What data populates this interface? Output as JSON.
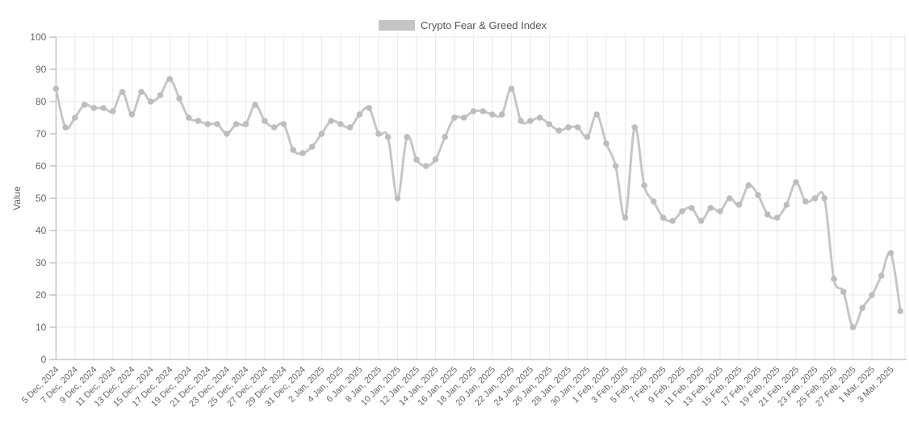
{
  "legend": {
    "label": "Crypto Fear & Greed Index"
  },
  "y_axis": {
    "title": "Value",
    "min": 0,
    "max": 100,
    "ticks": [
      0,
      10,
      20,
      30,
      40,
      50,
      60,
      70,
      80,
      90,
      100
    ]
  },
  "x_axis": {
    "tick_step": 2,
    "first_label": "5 Dec, 2024",
    "last_label": "3 Mar, 2025"
  },
  "colors": {
    "line": "#c6c6c6",
    "point": "#bdbdbd",
    "grid": "#e9e9e9",
    "axis": "#a8a8a8",
    "tick_label": "#666666",
    "legend_swatch": "#c4c4c4",
    "legend_text": "#555555"
  },
  "chart_data": {
    "type": "line",
    "title": "Crypto Fear & Greed Index",
    "ylabel": "Value",
    "ylim": [
      0,
      100
    ],
    "grid": true,
    "legend_position": "top",
    "x": [
      "5 Dec, 2024",
      "6 Dec, 2024",
      "7 Dec, 2024",
      "8 Dec, 2024",
      "9 Dec, 2024",
      "10 Dec, 2024",
      "11 Dec, 2024",
      "12 Dec, 2024",
      "13 Dec, 2024",
      "14 Dec, 2024",
      "15 Dec, 2024",
      "16 Dec, 2024",
      "17 Dec, 2024",
      "18 Dec, 2024",
      "19 Dec, 2024",
      "20 Dec, 2024",
      "21 Dec, 2024",
      "22 Dec, 2024",
      "23 Dec, 2024",
      "24 Dec, 2024",
      "25 Dec, 2024",
      "26 Dec, 2024",
      "27 Dec, 2024",
      "28 Dec, 2024",
      "29 Dec, 2024",
      "30 Dec, 2024",
      "31 Dec, 2024",
      "1 Jan, 2025",
      "2 Jan, 2025",
      "3 Jan, 2025",
      "4 Jan, 2025",
      "5 Jan, 2025",
      "6 Jan, 2025",
      "7 Jan, 2025",
      "8 Jan, 2025",
      "9 Jan, 2025",
      "10 Jan, 2025",
      "11 Jan, 2025",
      "12 Jan, 2025",
      "13 Jan, 2025",
      "14 Jan, 2025",
      "15 Jan, 2025",
      "16 Jan, 2025",
      "17 Jan, 2025",
      "18 Jan, 2025",
      "19 Jan, 2025",
      "20 Jan, 2025",
      "21 Jan, 2025",
      "22 Jan, 2025",
      "23 Jan, 2025",
      "24 Jan, 2025",
      "25 Jan, 2025",
      "26 Jan, 2025",
      "27 Jan, 2025",
      "28 Jan, 2025",
      "29 Jan, 2025",
      "30 Jan, 2025",
      "31 Jan, 2025",
      "1 Feb, 2025",
      "2 Feb, 2025",
      "3 Feb, 2025",
      "4 Feb, 2025",
      "5 Feb, 2025",
      "6 Feb, 2025",
      "7 Feb, 2025",
      "8 Feb, 2025",
      "9 Feb, 2025",
      "10 Feb, 2025",
      "11 Feb, 2025",
      "12 Feb, 2025",
      "13 Feb, 2025",
      "14 Feb, 2025",
      "15 Feb, 2025",
      "16 Feb, 2025",
      "17 Feb, 2025",
      "18 Feb, 2025",
      "19 Feb, 2025",
      "20 Feb, 2025",
      "21 Feb, 2025",
      "22 Feb, 2025",
      "23 Feb, 2025",
      "24 Feb, 2025",
      "25 Feb, 2025",
      "26 Feb, 2025",
      "27 Feb, 2025",
      "28 Feb, 2025",
      "1 Mar, 2025",
      "2 Mar, 2025",
      "3 Mar, 2025",
      "4 Mar, 2025"
    ],
    "series": [
      {
        "name": "Crypto Fear & Greed Index",
        "values": [
          84,
          72,
          75,
          79,
          78,
          78,
          77,
          83,
          76,
          83,
          80,
          82,
          87,
          81,
          75,
          74,
          73,
          73,
          70,
          73,
          73,
          79,
          74,
          72,
          73,
          65,
          64,
          66,
          70,
          74,
          73,
          72,
          76,
          78,
          70,
          69,
          50,
          69,
          62,
          60,
          62,
          69,
          75,
          75,
          77,
          77,
          76,
          76,
          84,
          74,
          74,
          75,
          73,
          71,
          72,
          72,
          69,
          76,
          67,
          60,
          44,
          72,
          54,
          49,
          44,
          43,
          46,
          47,
          43,
          47,
          46,
          50,
          48,
          54,
          51,
          45,
          44,
          48,
          55,
          49,
          50,
          50,
          25,
          21,
          10,
          16,
          20,
          26,
          33,
          15
        ]
      }
    ]
  }
}
